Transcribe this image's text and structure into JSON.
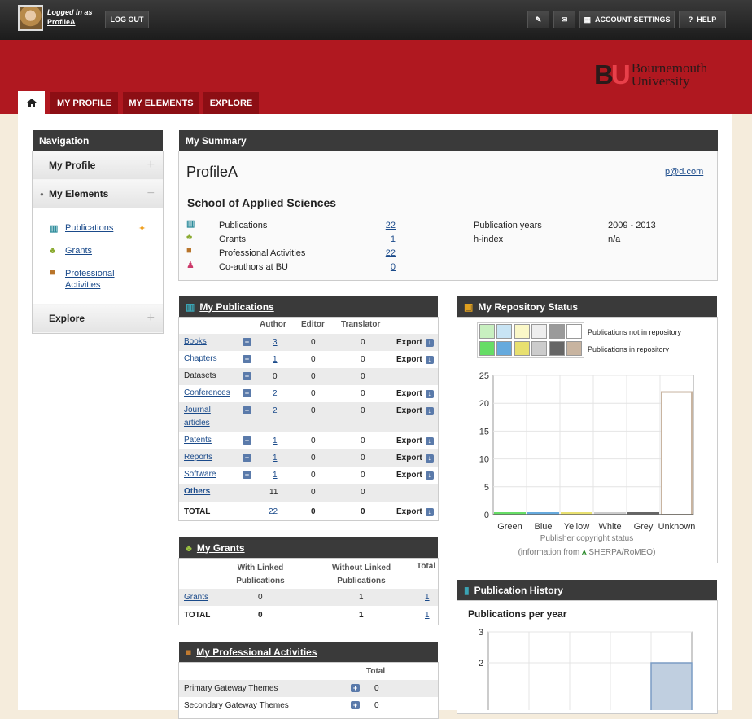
{
  "topbar": {
    "logged_in_as": "Logged in as",
    "user": "ProfileA",
    "logout": "LOG OUT",
    "account_settings": "ACCOUNT SETTINGS",
    "help": "HELP"
  },
  "brand": {
    "initials_b": "B",
    "initials_u": "U",
    "name_line1": "Bournemouth",
    "name_line2": "University"
  },
  "tabs": {
    "my_profile": "MY PROFILE",
    "my_elements": "MY ELEMENTS",
    "explore": "EXPLORE"
  },
  "nav": {
    "title": "Navigation",
    "my_profile": "My Profile",
    "my_elements": "My Elements",
    "publications": "Publications",
    "grants": "Grants",
    "prof_act_1": "Professional",
    "prof_act_2": "Activities",
    "explore": "Explore"
  },
  "summary": {
    "title": "My Summary",
    "name": "ProfileA",
    "email": "p@d.com",
    "school": "School of Applied Sciences",
    "rows": [
      {
        "label": "Publications",
        "value": "22"
      },
      {
        "label": "Grants",
        "value": "1"
      },
      {
        "label": "Professional Activities",
        "value": "22"
      },
      {
        "label": "Co-authors at BU",
        "value": "0"
      }
    ],
    "pub_years_label": "Publication years",
    "pub_years": "2009 - 2013",
    "hindex_label": "h-index",
    "hindex": "n/a"
  },
  "publications": {
    "title": "My Publications",
    "headers": [
      "Author",
      "Editor",
      "Translator"
    ],
    "export": "Export",
    "rows": [
      {
        "name": "Books",
        "a": "3",
        "e": "0",
        "t": "0"
      },
      {
        "name": "Chapters",
        "a": "1",
        "e": "0",
        "t": "0"
      },
      {
        "name": "Datasets",
        "a": "0",
        "e": "0",
        "t": "0"
      },
      {
        "name": "Conferences",
        "a": "2",
        "e": "0",
        "t": "0"
      },
      {
        "name": "Journal articles",
        "a": "2",
        "e": "0",
        "t": "0"
      },
      {
        "name": "Patents",
        "a": "1",
        "e": "0",
        "t": "0"
      },
      {
        "name": "Reports",
        "a": "1",
        "e": "0",
        "t": "0"
      },
      {
        "name": "Software",
        "a": "1",
        "e": "0",
        "t": "0"
      },
      {
        "name": "Others",
        "a": "11",
        "e": "0",
        "t": "0"
      }
    ],
    "total": {
      "name": "TOTAL",
      "a": "22",
      "e": "0",
      "t": "0"
    }
  },
  "grants": {
    "title": "My Grants",
    "h1a": "With Linked",
    "h1b": "Publications",
    "h2a": "Without Linked",
    "h2b": "Publications",
    "h3": "Total",
    "row": {
      "name": "Grants",
      "w": "0",
      "wo": "1",
      "t": "1"
    },
    "total": {
      "name": "TOTAL",
      "w": "0",
      "wo": "1",
      "t": "1"
    }
  },
  "activities": {
    "title": "My Professional Activities",
    "total_header": "Total",
    "rows": [
      {
        "name": "Primary Gateway Themes",
        "v": "0"
      },
      {
        "name": "Secondary Gateway Themes",
        "v": "0"
      }
    ]
  },
  "repository": {
    "title": "My Repository Status",
    "legend_not": "Publications not in repository",
    "legend_in": "Publications in repository",
    "xlabel": "Publisher copyright status",
    "source_prefix": "(information from",
    "source_name": "SHERPA/RoMEO)"
  },
  "history": {
    "title": "Publication History",
    "subtitle": "Publications per year"
  },
  "colors": {
    "green_light": "#c8f0c0",
    "blue_light": "#c8e4f4",
    "yellow_light": "#fbf8c8",
    "white_light": "#eeeeee",
    "grey_light": "#9a9a9a",
    "unknown_light": "#ffffff",
    "green": "#66dd66",
    "blue": "#66aadd",
    "yellow": "#e8e070",
    "white": "#cccccc",
    "grey": "#666666",
    "unknown": "#c8b4a0"
  },
  "chart_data": [
    {
      "type": "bar",
      "title": "",
      "xlabel": "Publisher copyright status",
      "ylabel": "",
      "categories": [
        "Green",
        "Blue",
        "Yellow",
        "White",
        "Grey",
        "Unknown"
      ],
      "series": [
        {
          "name": "Publications not in repository",
          "values": [
            0,
            0,
            0,
            0,
            0,
            22
          ]
        },
        {
          "name": "Publications in repository",
          "values": [
            0,
            0,
            0,
            0,
            0,
            0
          ]
        }
      ],
      "ylim": [
        0,
        25
      ],
      "yticks": [
        0,
        5,
        10,
        15,
        20,
        25
      ],
      "grid": true
    },
    {
      "type": "bar",
      "title": "Publications per year",
      "categories": [
        "",
        "",
        "",
        "",
        ""
      ],
      "values": [
        0,
        0,
        0,
        0,
        2
      ],
      "ylim": [
        0,
        3
      ],
      "yticks": [
        2,
        3
      ],
      "grid": true
    }
  ]
}
